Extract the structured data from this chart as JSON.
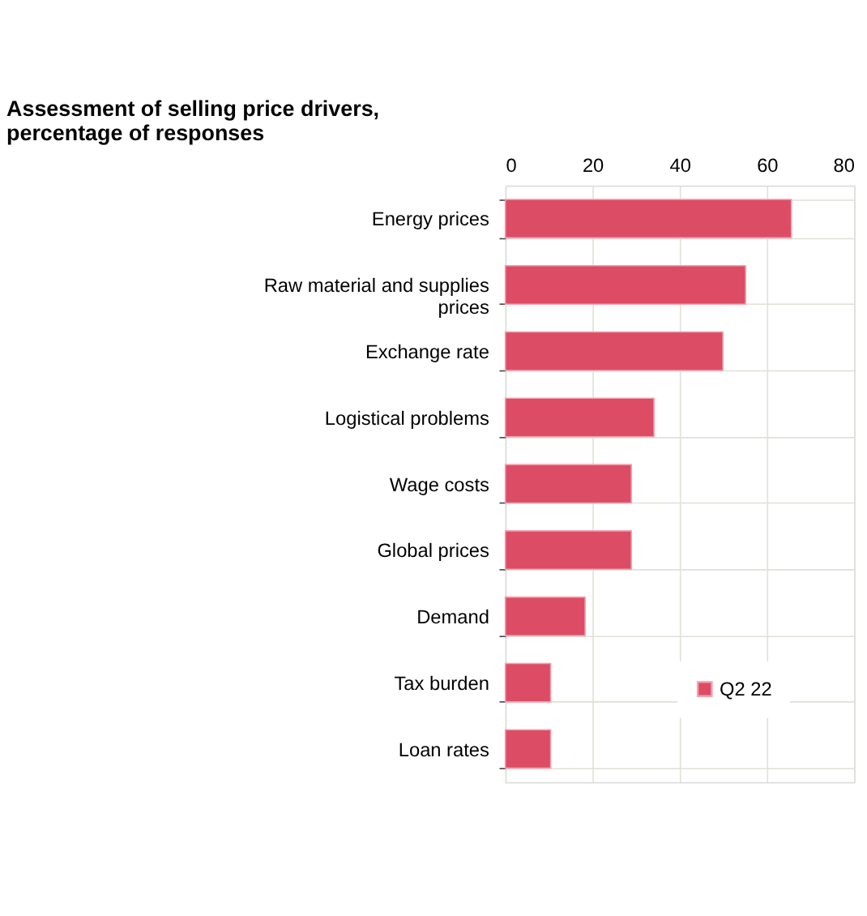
{
  "chart_data": {
    "type": "bar",
    "orientation": "horizontal",
    "title": [
      "Assessment of selling price drivers,",
      "percentage of responses"
    ],
    "categories": [
      "Energy prices",
      "Raw material and supplies prices",
      "Exchange rate",
      "Logistical problems",
      "Wage costs",
      "Global prices",
      "Demand",
      "Tax burden",
      "Loan rates"
    ],
    "series": [
      {
        "name": "Q2 22",
        "color": "#dc4c64",
        "values": [
          65.6,
          55.1,
          49.9,
          34.1,
          28.9,
          28.9,
          18.3,
          10.4,
          10.4
        ]
      }
    ],
    "xlim": [
      0,
      80
    ],
    "xticks": [
      0,
      20,
      40,
      60,
      80
    ],
    "grid": true,
    "legend": "bottom right"
  }
}
